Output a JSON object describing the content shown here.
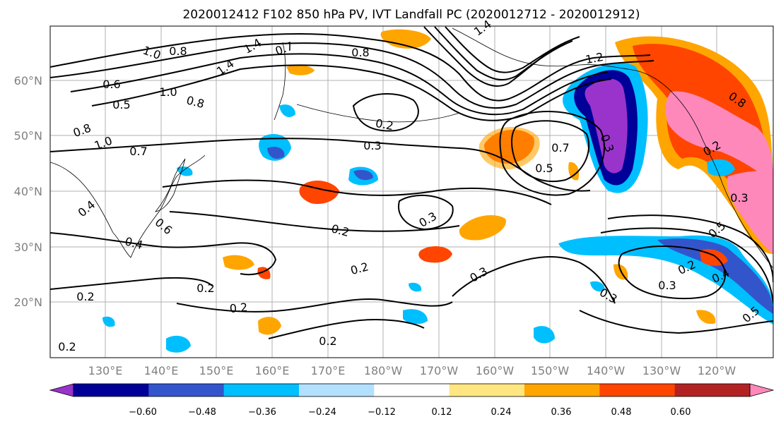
{
  "title": "2020012412 F102 850 hPa PV, IVT Landfall PC (2020012712 - 2020012912)",
  "lat_labels": [
    "60°N",
    "50°N",
    "40°N",
    "30°N",
    "20°N"
  ],
  "lon_labels": [
    "130°E",
    "140°E",
    "150°E",
    "160°E",
    "170°E",
    "180°W",
    "170°W",
    "160°W",
    "150°W",
    "140°W",
    "130°W",
    "120°W"
  ],
  "contour_labels": [
    "1.0",
    "0.8",
    "1.4",
    "1.4",
    "0.7",
    "0.8",
    "1.4",
    "1.2",
    "0.6",
    "0.5",
    "1.0",
    "0.8",
    "0.8",
    "1.0",
    "0.7",
    "0.2",
    "0.3",
    "0.7",
    "0.5",
    "0.4",
    "0.4",
    "0.6",
    "0.2",
    "0.3",
    "0.2",
    "0.2",
    "0.2",
    "0.2",
    "0.2",
    "0.3",
    "0.3",
    "0.2",
    "0.3",
    "0.4",
    "0.5",
    "0.3",
    "0.8",
    "0.5",
    "0.3",
    "0.2",
    "0.2"
  ],
  "colorbar": {
    "colors": [
      "#9933cc",
      "#000099",
      "#3355cc",
      "#00bfff",
      "#b3e0ff",
      "#ffffff",
      "#ffe680",
      "#ffa500",
      "#ff4500",
      "#b22222",
      "#ff88bb"
    ],
    "ticks": [
      "−0.60",
      "−0.48",
      "−0.36",
      "−0.24",
      "−0.12",
      "0.12",
      "0.24",
      "0.36",
      "0.48",
      "0.60"
    ]
  }
}
